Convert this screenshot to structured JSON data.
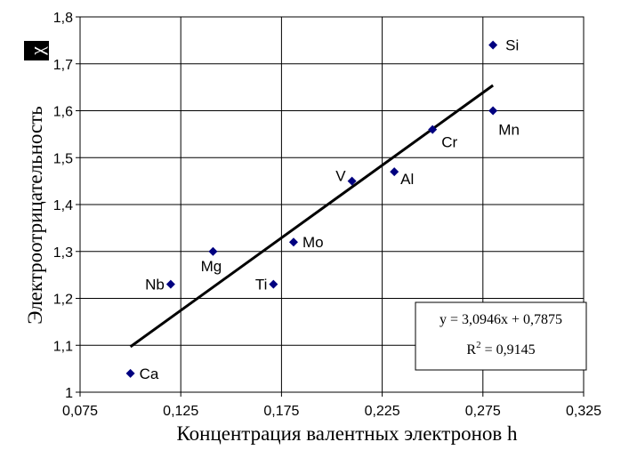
{
  "chart_data": {
    "type": "scatter",
    "xlabel": "Концентрация валентных электронов h",
    "ylabel": "Электроотрицательность",
    "ylabel_suffix": "χ",
    "xlim": [
      0.075,
      0.325
    ],
    "ylim": [
      1.0,
      1.8
    ],
    "xticks": [
      "0,075",
      "0,125",
      "0,175",
      "0,225",
      "0,275",
      "0,325"
    ],
    "xtick_values": [
      0.075,
      0.125,
      0.175,
      0.225,
      0.275,
      0.325
    ],
    "yticks": [
      "1",
      "1,1",
      "1,2",
      "1,3",
      "1,4",
      "1,5",
      "1,6",
      "1,7",
      "1,8"
    ],
    "ytick_values": [
      1.0,
      1.1,
      1.2,
      1.3,
      1.4,
      1.5,
      1.6,
      1.7,
      1.8
    ],
    "grid": true,
    "legend": "none",
    "marker_color": "#000080",
    "points": [
      {
        "label": "Ca",
        "x": 0.1,
        "y": 1.04
      },
      {
        "label": "Nb",
        "x": 0.12,
        "y": 1.23
      },
      {
        "label": "Mg",
        "x": 0.141,
        "y": 1.3
      },
      {
        "label": "Ti",
        "x": 0.171,
        "y": 1.23
      },
      {
        "label": "Mo",
        "x": 0.181,
        "y": 1.32
      },
      {
        "label": "V",
        "x": 0.21,
        "y": 1.45
      },
      {
        "label": "Al",
        "x": 0.231,
        "y": 1.47
      },
      {
        "label": "Cr",
        "x": 0.25,
        "y": 1.56
      },
      {
        "label": "Mn",
        "x": 0.28,
        "y": 1.6
      },
      {
        "label": "Si",
        "x": 0.28,
        "y": 1.74
      }
    ],
    "trendline": {
      "type": "linear",
      "slope": 3.0946,
      "intercept": 0.7875,
      "x_range": [
        0.1,
        0.28
      ]
    },
    "annotations": {
      "equation": "y = 3,0946x + 0,7875",
      "r2_prefix": "R",
      "r2_sup": "2",
      "r2_value": " = 0,9145"
    }
  }
}
